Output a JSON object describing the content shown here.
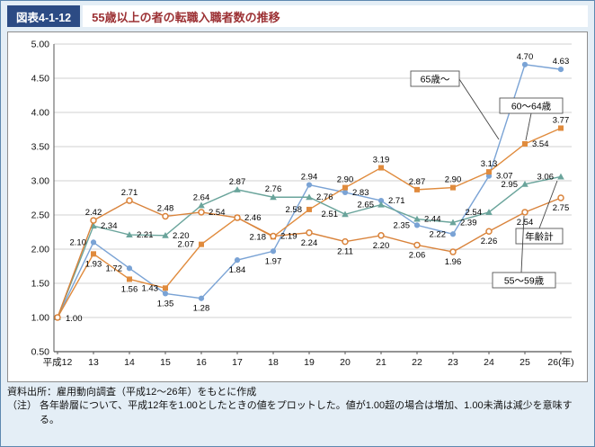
{
  "header": {
    "figure_label": "図表4-1-12",
    "title": "55歳以上の者の転職入職者数の推移"
  },
  "chart_data": {
    "type": "line",
    "title": "55歳以上の者の転職入職者数の推移",
    "categories": [
      "平成12",
      "13",
      "14",
      "15",
      "16",
      "17",
      "18",
      "19",
      "20",
      "21",
      "22",
      "23",
      "24",
      "25",
      "26(年)"
    ],
    "series": [
      {
        "name": "65歳〜",
        "marker": "circle",
        "color": "#7aa3d5",
        "values": [
          1.0,
          2.1,
          1.72,
          1.35,
          1.28,
          1.84,
          1.97,
          2.94,
          2.83,
          2.71,
          2.35,
          2.22,
          3.07,
          4.7,
          4.63
        ]
      },
      {
        "name": "60〜64歳",
        "marker": "square",
        "color": "#e08b3d",
        "values": [
          1.0,
          1.93,
          1.56,
          1.43,
          2.07,
          2.46,
          2.18,
          2.58,
          2.9,
          3.19,
          2.87,
          2.9,
          3.13,
          3.54,
          3.77
        ]
      },
      {
        "name": "年齢計",
        "marker": "triangle",
        "color": "#6aa49b",
        "values": [
          1.0,
          2.34,
          2.21,
          2.2,
          2.64,
          2.87,
          2.76,
          2.76,
          2.51,
          2.65,
          2.44,
          2.39,
          2.54,
          2.95,
          3.06
        ]
      },
      {
        "name": "55〜59歳",
        "marker": "open-circle",
        "color": "#d9833b",
        "values": [
          1.0,
          2.42,
          2.71,
          2.48,
          2.54,
          2.46,
          2.19,
          2.24,
          2.11,
          2.2,
          2.06,
          1.96,
          2.26,
          2.54,
          2.75
        ]
      }
    ],
    "ylim": [
      0.5,
      5.0
    ],
    "ytick_step": 0.5,
    "grid": true,
    "legend_position": "annotations-right"
  },
  "footer": {
    "source": "資料出所：雇用動向調査（平成12〜26年）をもとに作成",
    "note_label": "（注）",
    "note_text": "各年齢層について、平成12年を1.00としたときの値をプロットした。値が1.00超の場合は増加、1.00未満は減少を意味する。"
  }
}
